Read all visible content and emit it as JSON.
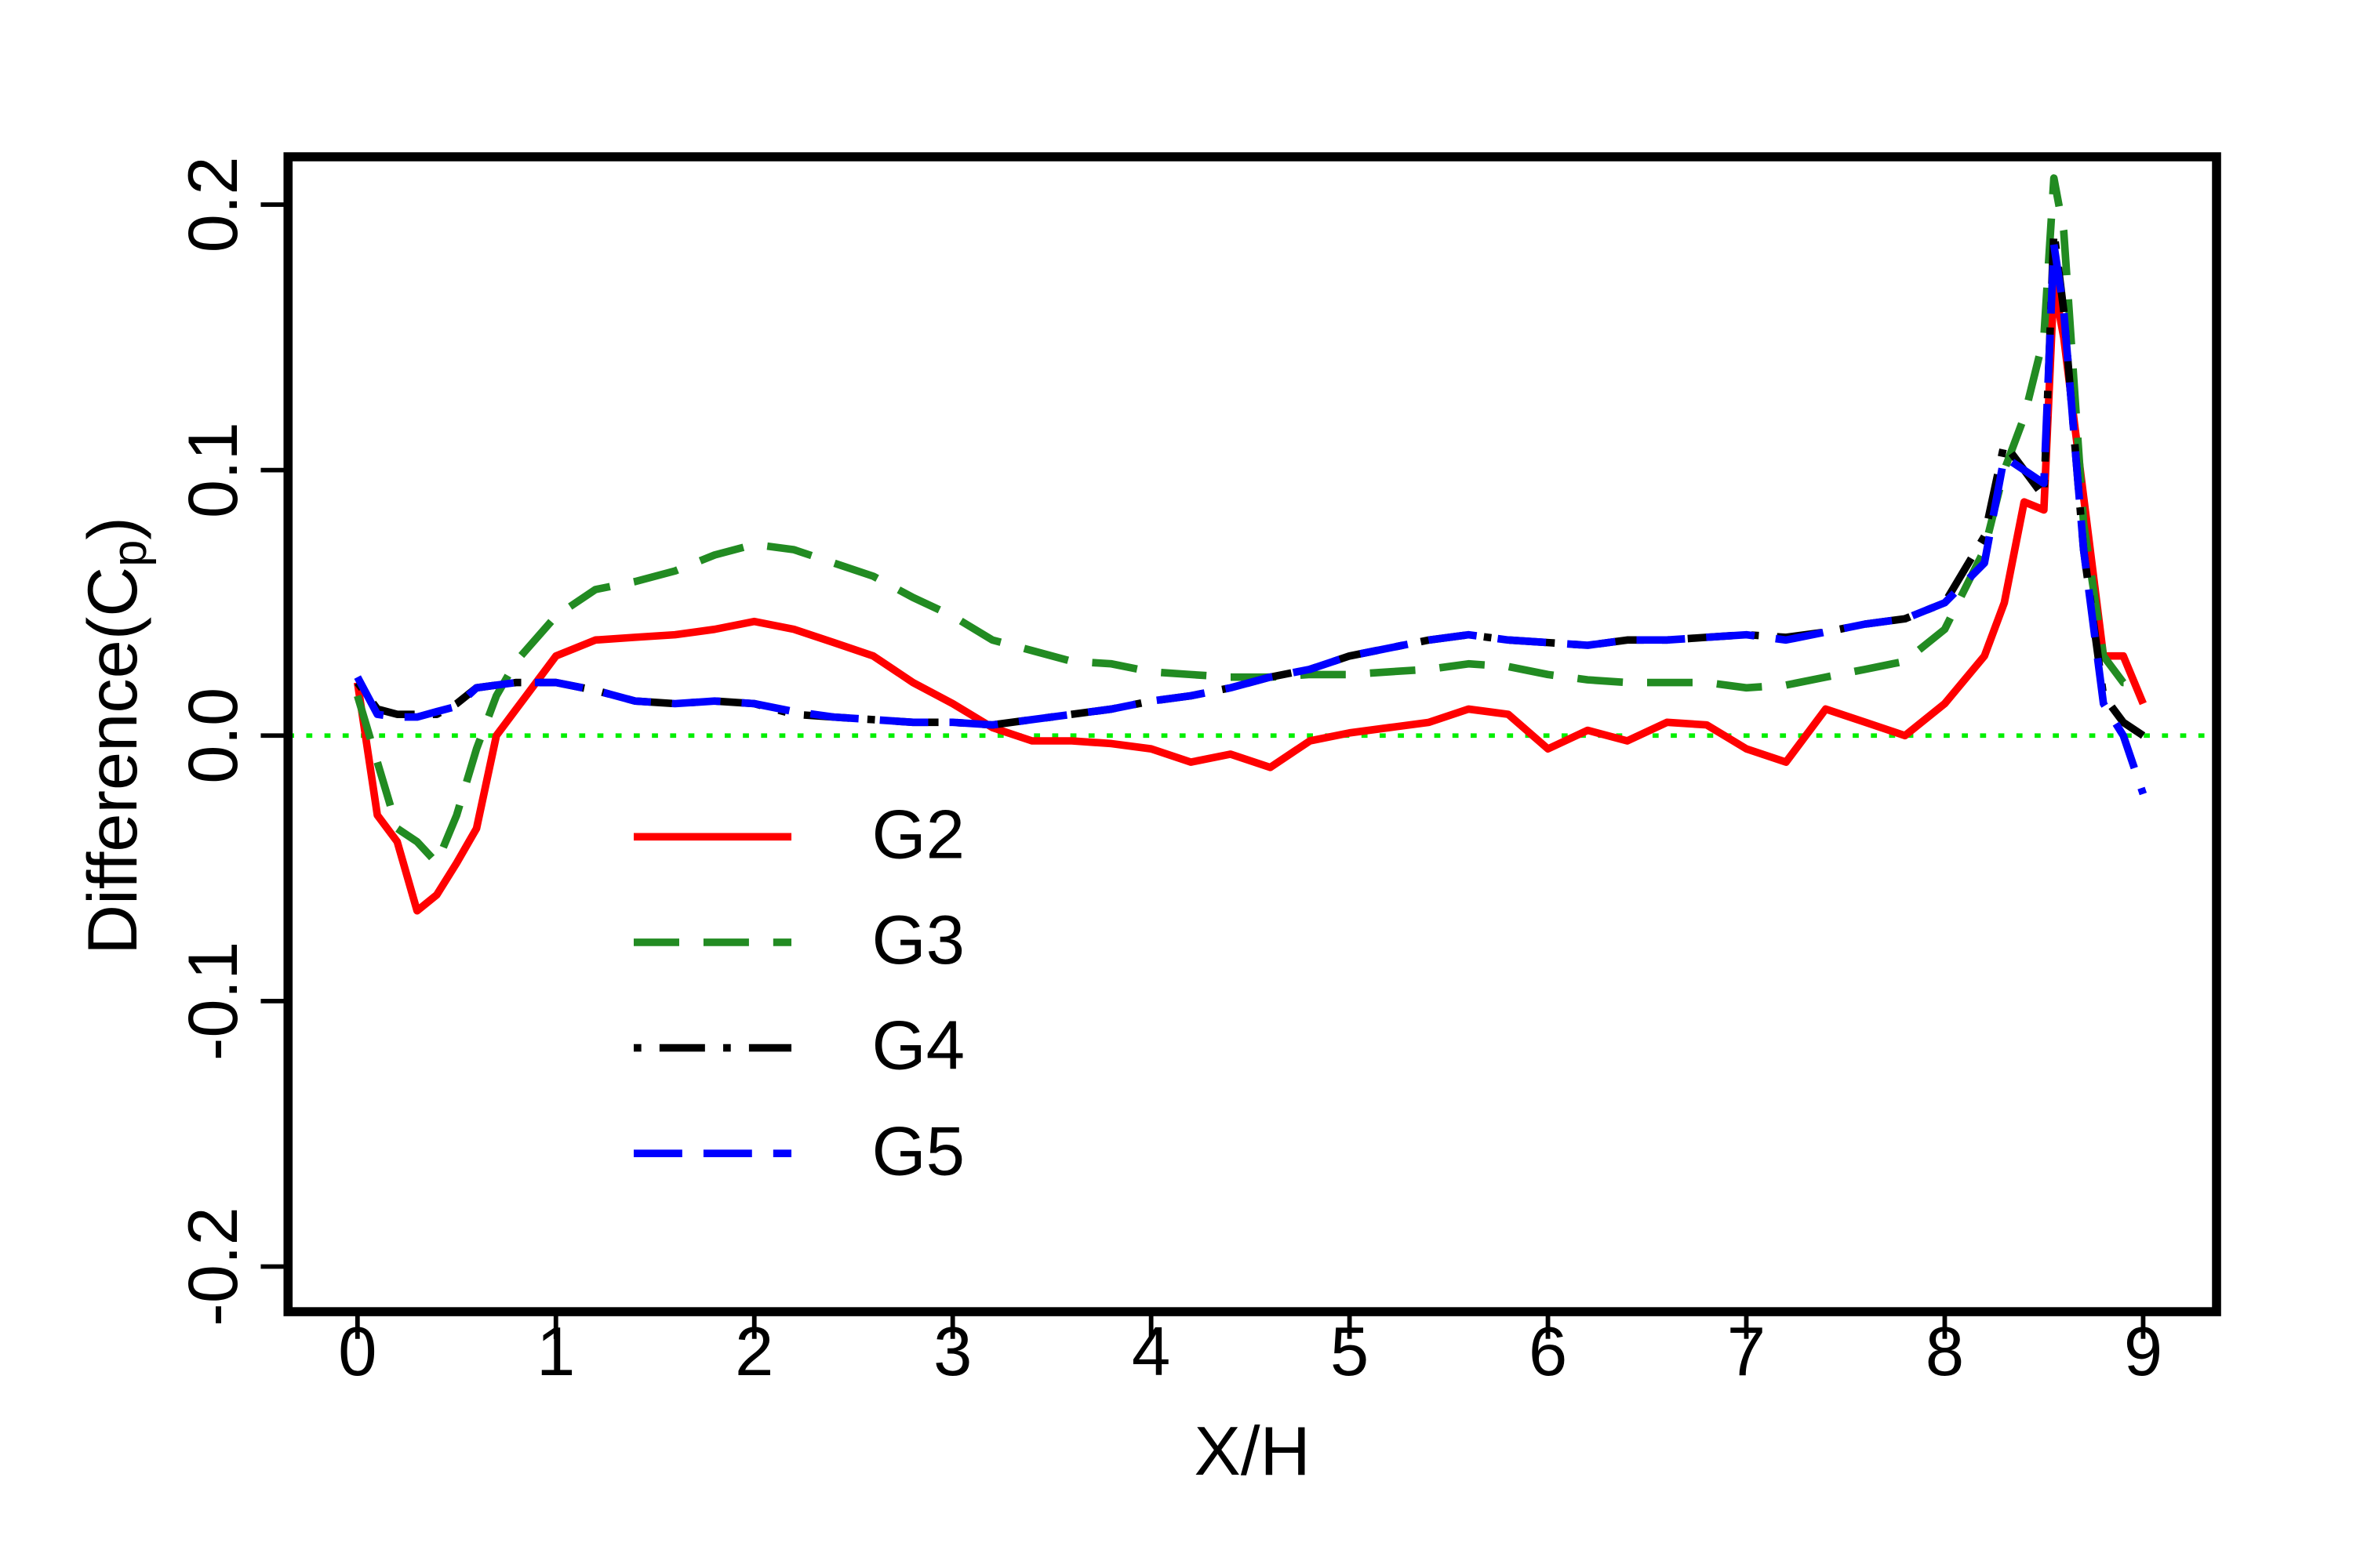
{
  "chart_data": {
    "type": "line",
    "xlabel": "X/H",
    "ylabel": [
      "Difference(C",
      "p",
      ")"
    ],
    "xlim": [
      -0.35,
      9.37
    ],
    "ylim": [
      -0.217,
      0.218
    ],
    "xticks": [
      0,
      1,
      2,
      3,
      4,
      5,
      6,
      7,
      8,
      9
    ],
    "yticks": [
      -0.2,
      -0.1,
      {
        "value": 0,
        "label": "0.0"
      },
      0.1,
      0.2
    ],
    "reference_line": {
      "y": 0,
      "color": "#00ee00"
    },
    "legend": "left",
    "x": [
      0,
      0.1,
      0.2,
      0.3,
      0.4,
      0.5,
      0.6,
      0.7,
      0.8,
      1,
      1.2,
      1.4,
      1.6,
      1.8,
      2,
      2.2,
      2.4,
      2.6,
      2.8,
      3,
      3.2,
      3.4,
      3.6,
      3.8,
      4,
      4.2,
      4.4,
      4.6,
      4.8,
      5,
      5.2,
      5.4,
      5.6,
      5.8,
      6,
      6.2,
      6.4,
      6.6,
      6.8,
      7,
      7.2,
      7.4,
      7.6,
      7.8,
      8,
      8.2,
      8.3,
      8.4,
      8.5,
      8.55,
      8.6,
      8.7,
      8.8,
      8.9,
      9
    ],
    "series": [
      {
        "name": "G2",
        "color": "#ff0000",
        "line_style": "solid",
        "values": [
          0.02,
          -0.03,
          -0.04,
          -0.066,
          -0.06,
          -0.048,
          -0.035,
          0.0,
          0.01,
          0.03,
          0.036,
          0.037,
          0.038,
          0.04,
          0.043,
          0.04,
          0.035,
          0.03,
          0.02,
          0.012,
          0.003,
          -0.002,
          -0.002,
          -0.003,
          -0.005,
          -0.01,
          -0.007,
          -0.012,
          -0.002,
          0.001,
          0.003,
          0.005,
          0.01,
          0.008,
          -0.005,
          0.002,
          -0.002,
          0.005,
          0.004,
          -0.005,
          -0.01,
          0.01,
          0.005,
          0.0,
          0.012,
          0.03,
          0.05,
          0.088,
          0.085,
          0.17,
          0.15,
          0.09,
          0.03,
          0.03,
          0.012
        ]
      },
      {
        "name": "G3",
        "color": "#228b22",
        "line_style": "dashed",
        "values": [
          0.015,
          -0.01,
          -0.035,
          -0.04,
          -0.048,
          -0.03,
          -0.005,
          0.015,
          0.028,
          0.045,
          0.055,
          0.058,
          0.062,
          0.068,
          0.072,
          0.07,
          0.065,
          0.06,
          0.052,
          0.045,
          0.036,
          0.032,
          0.028,
          0.027,
          0.024,
          0.023,
          0.022,
          0.022,
          0.023,
          0.023,
          0.024,
          0.025,
          0.027,
          0.026,
          0.023,
          0.021,
          0.02,
          0.02,
          0.02,
          0.018,
          0.019,
          0.022,
          0.025,
          0.028,
          0.04,
          0.07,
          0.1,
          0.12,
          0.15,
          0.21,
          0.19,
          0.08,
          0.03,
          0.02,
          0.02
        ]
      },
      {
        "name": "G4",
        "color": "#000000",
        "line_style": "dotdash",
        "values": [
          0.02,
          0.01,
          0.008,
          0.008,
          0.008,
          0.012,
          0.018,
          0.019,
          0.02,
          0.02,
          0.017,
          0.013,
          0.012,
          0.013,
          0.012,
          0.008,
          0.007,
          0.006,
          0.005,
          0.005,
          0.004,
          0.006,
          0.008,
          0.01,
          0.013,
          0.015,
          0.018,
          0.022,
          0.025,
          0.03,
          0.033,
          0.036,
          0.038,
          0.036,
          0.035,
          0.034,
          0.036,
          0.036,
          0.037,
          0.038,
          0.037,
          0.039,
          0.042,
          0.044,
          0.05,
          0.075,
          0.11,
          0.1,
          0.09,
          0.19,
          0.16,
          0.07,
          0.015,
          0.005,
          0.0
        ]
      },
      {
        "name": "G5",
        "color": "#0000ff",
        "line_style": "longdash",
        "values": [
          0.022,
          0.008,
          0.007,
          0.007,
          0.009,
          0.011,
          0.018,
          0.019,
          0.02,
          0.02,
          0.017,
          0.013,
          0.012,
          0.013,
          0.012,
          0.009,
          0.007,
          0.006,
          0.005,
          0.005,
          0.004,
          0.006,
          0.008,
          0.01,
          0.013,
          0.015,
          0.018,
          0.022,
          0.025,
          0.03,
          0.033,
          0.036,
          0.038,
          0.036,
          0.035,
          0.034,
          0.036,
          0.036,
          0.037,
          0.038,
          0.036,
          0.039,
          0.042,
          0.044,
          0.05,
          0.065,
          0.105,
          0.1,
          0.095,
          0.185,
          0.16,
          0.07,
          0.012,
          0.0,
          -0.022
        ]
      }
    ]
  }
}
